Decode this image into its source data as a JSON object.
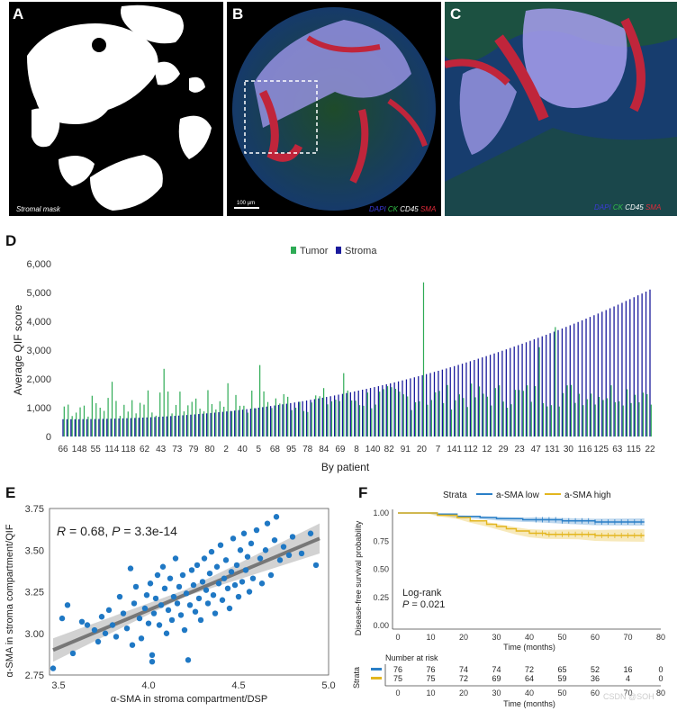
{
  "figure": {
    "panel_labels": {
      "a": "A",
      "b": "B",
      "c": "C",
      "d": "D",
      "e": "E",
      "f": "F"
    },
    "panel_a": {
      "caption": "Stromal mask"
    },
    "panel_b": {
      "scale_bar": "100 µm",
      "legend": [
        "DAPI",
        "CK",
        "CD45",
        "SMA"
      ]
    },
    "panel_c": {
      "legend": [
        "DAPI",
        "CK",
        "CD45",
        "SMA"
      ]
    },
    "panel_d": {
      "x_label": "By patient",
      "y_label": "Average QIF score"
    },
    "panel_e": {
      "stat_r": "R",
      "stat_r_rest": " = 0.68, ",
      "stat_p": "P",
      "stat_p_rest": " = 3.3e-14"
    },
    "panel_f": {
      "strata_title": "Strata",
      "legend_low": "a-SMA low",
      "legend_high": "a-SMA high",
      "logrank_title": "Log-rank",
      "logrank_p": "P",
      "logrank_val": " = 0.021",
      "risk_title": "Number at risk",
      "risk_axis": "Strata",
      "risk_low": [
        "76",
        "76",
        "74",
        "74",
        "72",
        "65",
        "52",
        "16",
        "0"
      ],
      "risk_high": [
        "75",
        "75",
        "72",
        "69",
        "64",
        "59",
        "36",
        "4",
        "0"
      ],
      "risk_xticks": [
        "0",
        "10",
        "20",
        "30",
        "40",
        "50",
        "60",
        "70",
        "80"
      ],
      "risk_xlabel": "Time (months)"
    },
    "watermark": "CSDN @SOH"
  },
  "chart_data": [
    {
      "panel": "D",
      "type": "bar",
      "xlabel": "By patient",
      "ylabel": "Average QIF score",
      "ylim": [
        0,
        6000
      ],
      "yticks": [
        "0",
        "1,000",
        "2,000",
        "3,000",
        "4,000",
        "5,000",
        "6,000"
      ],
      "legend": [
        "Tumor",
        "Stroma"
      ],
      "legend_placement": "top-center",
      "colors": {
        "Tumor": "#2eab55",
        "Stroma": "#1a1a9c"
      },
      "xticks": [
        "66",
        "148",
        "55",
        "114",
        "118",
        "62",
        "43",
        "73",
        "79",
        "80",
        "2",
        "40",
        "5",
        "68",
        "95",
        "78",
        "84",
        "69",
        "8",
        "140",
        "82",
        "91",
        "20",
        "7",
        "141",
        "112",
        "12",
        "29",
        "23",
        "47",
        "131",
        "30",
        "116",
        "125",
        "63",
        "115",
        "22"
      ],
      "stroma_range": [
        600,
        5100
      ],
      "tumor_spikes": [
        {
          "x": "114",
          "value": 1900
        },
        {
          "x": "62",
          "value": 1600
        },
        {
          "x": "43",
          "value": 2350
        },
        {
          "x": "2",
          "value": 1850
        },
        {
          "x": "5",
          "value": 2480
        },
        {
          "x": "69",
          "value": 2200
        },
        {
          "x": "20",
          "value": 5350
        },
        {
          "x": "47",
          "value": 3100
        },
        {
          "x": "131",
          "value": 3800
        }
      ]
    },
    {
      "panel": "E",
      "type": "scatter",
      "xlabel": "α-SMA in stroma compartment/DSP",
      "ylabel": "α-SMA in stroma compartment/QIF",
      "xlim": [
        3.45,
        5.0
      ],
      "ylim": [
        2.75,
        3.75
      ],
      "xticks": [
        "3.5",
        "4.0",
        "4.5",
        "5.0"
      ],
      "yticks": [
        "2.75",
        "3.00",
        "3.25",
        "3.50",
        "3.75"
      ],
      "fit": {
        "x": [
          3.47,
          4.95
        ],
        "y": [
          2.9,
          3.57
        ]
      },
      "color": "#1f78c4",
      "points": [
        [
          3.47,
          2.79
        ],
        [
          3.52,
          3.09
        ],
        [
          3.55,
          3.17
        ],
        [
          3.58,
          2.88
        ],
        [
          3.63,
          3.07
        ],
        [
          3.66,
          3.05
        ],
        [
          3.7,
          3.02
        ],
        [
          3.72,
          2.95
        ],
        [
          3.74,
          3.1
        ],
        [
          3.76,
          3.0
        ],
        [
          3.78,
          3.14
        ],
        [
          3.8,
          3.05
        ],
        [
          3.82,
          2.98
        ],
        [
          3.84,
          3.22
        ],
        [
          3.86,
          3.12
        ],
        [
          3.88,
          3.03
        ],
        [
          3.9,
          3.39
        ],
        [
          3.91,
          2.93
        ],
        [
          3.92,
          3.18
        ],
        [
          3.93,
          3.28
        ],
        [
          3.95,
          3.09
        ],
        [
          3.96,
          2.97
        ],
        [
          3.98,
          3.15
        ],
        [
          3.99,
          3.23
        ],
        [
          4.0,
          3.06
        ],
        [
          4.01,
          3.3
        ],
        [
          4.02,
          2.87
        ],
        [
          4.02,
          2.83
        ],
        [
          4.03,
          3.12
        ],
        [
          4.04,
          3.21
        ],
        [
          4.05,
          3.35
        ],
        [
          4.06,
          3.05
        ],
        [
          4.07,
          3.17
        ],
        [
          4.08,
          3.4
        ],
        [
          4.09,
          3.27
        ],
        [
          4.1,
          3.0
        ],
        [
          4.11,
          3.14
        ],
        [
          4.12,
          3.33
        ],
        [
          4.13,
          3.08
        ],
        [
          4.14,
          3.22
        ],
        [
          4.15,
          3.45
        ],
        [
          4.16,
          3.18
        ],
        [
          4.17,
          3.28
        ],
        [
          4.18,
          3.11
        ],
        [
          4.19,
          3.35
        ],
        [
          4.2,
          3.02
        ],
        [
          4.21,
          3.24
        ],
        [
          4.22,
          2.84
        ],
        [
          4.23,
          3.17
        ],
        [
          4.24,
          3.38
        ],
        [
          4.25,
          3.29
        ],
        [
          4.26,
          3.13
        ],
        [
          4.27,
          3.41
        ],
        [
          4.28,
          3.21
        ],
        [
          4.29,
          3.08
        ],
        [
          4.3,
          3.31
        ],
        [
          4.31,
          3.45
        ],
        [
          4.32,
          3.26
        ],
        [
          4.33,
          3.18
        ],
        [
          4.34,
          3.36
        ],
        [
          4.35,
          3.49
        ],
        [
          4.36,
          3.23
        ],
        [
          4.37,
          3.12
        ],
        [
          4.38,
          3.4
        ],
        [
          4.39,
          3.3
        ],
        [
          4.4,
          3.53
        ],
        [
          4.41,
          3.2
        ],
        [
          4.42,
          3.33
        ],
        [
          4.43,
          3.44
        ],
        [
          4.44,
          3.27
        ],
        [
          4.45,
          3.15
        ],
        [
          4.46,
          3.37
        ],
        [
          4.47,
          3.57
        ],
        [
          4.48,
          3.29
        ],
        [
          4.49,
          3.41
        ],
        [
          4.5,
          3.22
        ],
        [
          4.51,
          3.5
        ],
        [
          4.52,
          3.31
        ],
        [
          4.53,
          3.6
        ],
        [
          4.54,
          3.38
        ],
        [
          4.55,
          3.46
        ],
        [
          4.56,
          3.25
        ],
        [
          4.57,
          3.54
        ],
        [
          4.58,
          3.33
        ],
        [
          4.6,
          3.62
        ],
        [
          4.62,
          3.45
        ],
        [
          4.63,
          3.3
        ],
        [
          4.65,
          3.5
        ],
        [
          4.66,
          3.66
        ],
        [
          4.68,
          3.35
        ],
        [
          4.7,
          3.56
        ],
        [
          4.71,
          3.7
        ],
        [
          4.73,
          3.44
        ],
        [
          4.75,
          3.52
        ],
        [
          4.78,
          3.47
        ],
        [
          4.8,
          3.58
        ],
        [
          4.85,
          3.48
        ],
        [
          4.9,
          3.6
        ],
        [
          4.93,
          3.41
        ]
      ]
    },
    {
      "panel": "F",
      "type": "line",
      "xlabel": "Time (months)",
      "ylabel": "Disease-free survival probability",
      "xlim": [
        0,
        80
      ],
      "ylim": [
        0,
        1
      ],
      "xticks": [
        "0",
        "10",
        "20",
        "30",
        "40",
        "50",
        "60",
        "70",
        "80"
      ],
      "yticks": [
        "0.00",
        "0.25",
        "0.50",
        "0.75",
        "1.00"
      ],
      "legend_placement": "top",
      "series": [
        {
          "name": "a-SMA low",
          "color": "#2a7fc7",
          "x": [
            0,
            9,
            12,
            18,
            25,
            30,
            38,
            42,
            50,
            60,
            75
          ],
          "y": [
            1.0,
            1.0,
            0.99,
            0.97,
            0.96,
            0.95,
            0.94,
            0.94,
            0.93,
            0.92,
            0.92
          ]
        },
        {
          "name": "a-SMA high",
          "color": "#e3b61f",
          "x": [
            0,
            9,
            12,
            18,
            22,
            27,
            30,
            33,
            36,
            40,
            45,
            55,
            60,
            65,
            75
          ],
          "y": [
            1.0,
            1.0,
            0.98,
            0.96,
            0.93,
            0.9,
            0.88,
            0.86,
            0.84,
            0.82,
            0.81,
            0.81,
            0.8,
            0.8,
            0.8
          ]
        }
      ]
    }
  ]
}
